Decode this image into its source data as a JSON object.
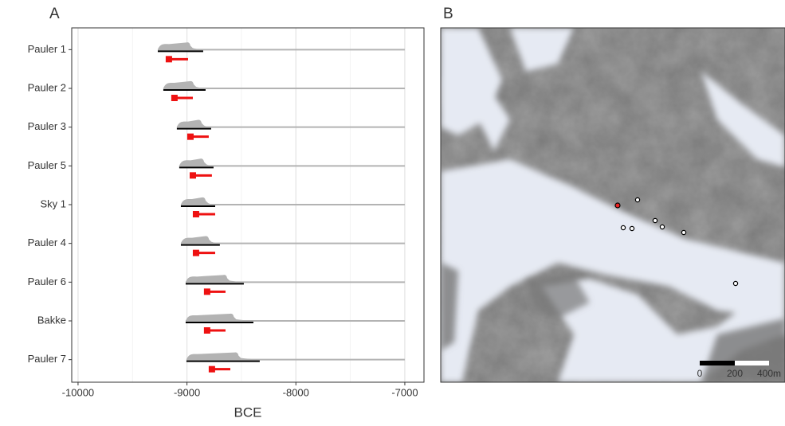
{
  "chart_data": {
    "type": "interval",
    "panel_label": "A",
    "x_label": "BCE",
    "categories": [
      "Pauler 1",
      "Pauler 2",
      "Pauler 3",
      "Pauler 5",
      "Sky 1",
      "Pauler 4",
      "Pauler 6",
      "Bakke",
      "Pauler 7"
    ],
    "range_start": [
      -9268,
      -9217,
      -9093,
      -9071,
      -9056,
      -9056,
      -9012,
      -9012,
      -9005
    ],
    "range_end": [
      -8851,
      -8829,
      -8778,
      -8756,
      -8741,
      -8698,
      -8478,
      -8390,
      -8332
    ],
    "point": [
      -9166,
      -9115,
      -8968,
      -8946,
      -8917,
      -8917,
      -8815,
      -8815,
      -8771
    ],
    "point_end": [
      -8990,
      -8946,
      -8800,
      -8771,
      -8741,
      -8741,
      -8646,
      -8646,
      -8602
    ],
    "density_color": "#b3b3b3",
    "range_color": "#000000",
    "point_color": "#ee1111",
    "xlim": [
      -10058,
      -6824
    ],
    "xticks": [
      -10000,
      -9000,
      -8000,
      -7000
    ],
    "grid": true
  },
  "map": {
    "panel_label": "B",
    "scale_labels": [
      "0",
      "200",
      "400m"
    ]
  }
}
